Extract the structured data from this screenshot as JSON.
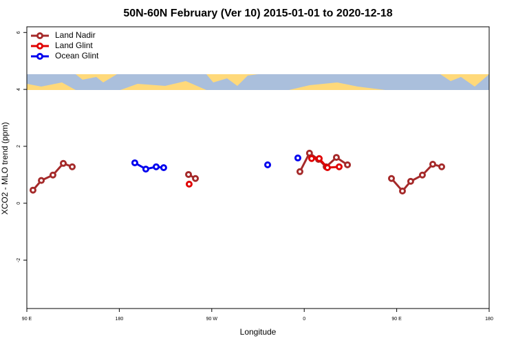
{
  "chart_data": {
    "type": "line",
    "title": "50N-60N February (Ver 10)   2015-01-01 to 2020-12-18",
    "x_label": "Longitude",
    "y_label": "XCO2 - MLO trend (ppm)",
    "xlim": [
      90,
      540
    ],
    "ylim": [
      -3.7,
      6.2
    ],
    "xticks": [
      {
        "value": 90,
        "label": "90 E"
      },
      180,
      {
        "value": 270,
        "label": "90 W"
      },
      {
        "value": 360,
        "label": "0"
      },
      {
        "value": 450,
        "label": "90 E"
      },
      {
        "value": 540,
        "label": "180"
      }
    ],
    "yticks": [
      -2,
      0,
      2,
      4,
      6
    ],
    "legend": "top-left",
    "series": [
      {
        "name": "Land Nadir",
        "color": "#a52a2a",
        "x": [
          96.0,
          104.1,
          115.4,
          125.5,
          134.2,
          null,
          247.4,
          254.1,
          null,
          355.8,
          365.1,
          373.9,
          381.3,
          391.3,
          402.1,
          null,
          444.9,
          455.6,
          463.6,
          475.0,
          485.1,
          493.8
        ],
        "values": [
          0.46,
          0.8,
          0.99,
          1.4,
          1.28,
          null,
          1.01,
          0.87,
          null,
          1.11,
          1.76,
          1.54,
          1.28,
          1.61,
          1.35,
          null,
          0.87,
          0.43,
          0.77,
          0.99,
          1.37,
          1.28
        ]
      },
      {
        "name": "Land Glint",
        "color": "#e00000",
        "x": [
          248.0,
          null,
          367.2,
          374.6,
          382.6,
          394.0
        ],
        "values": [
          0.67,
          null,
          1.57,
          1.57,
          1.25,
          1.28
        ]
      },
      {
        "name": "Ocean Glint",
        "color": "#0000ee",
        "x": [
          195.1,
          205.8,
          215.9,
          223.2,
          null,
          324.4,
          null,
          353.8
        ],
        "values": [
          1.42,
          1.2,
          1.28,
          1.25,
          null,
          1.35,
          null,
          1.59
        ]
      }
    ]
  }
}
